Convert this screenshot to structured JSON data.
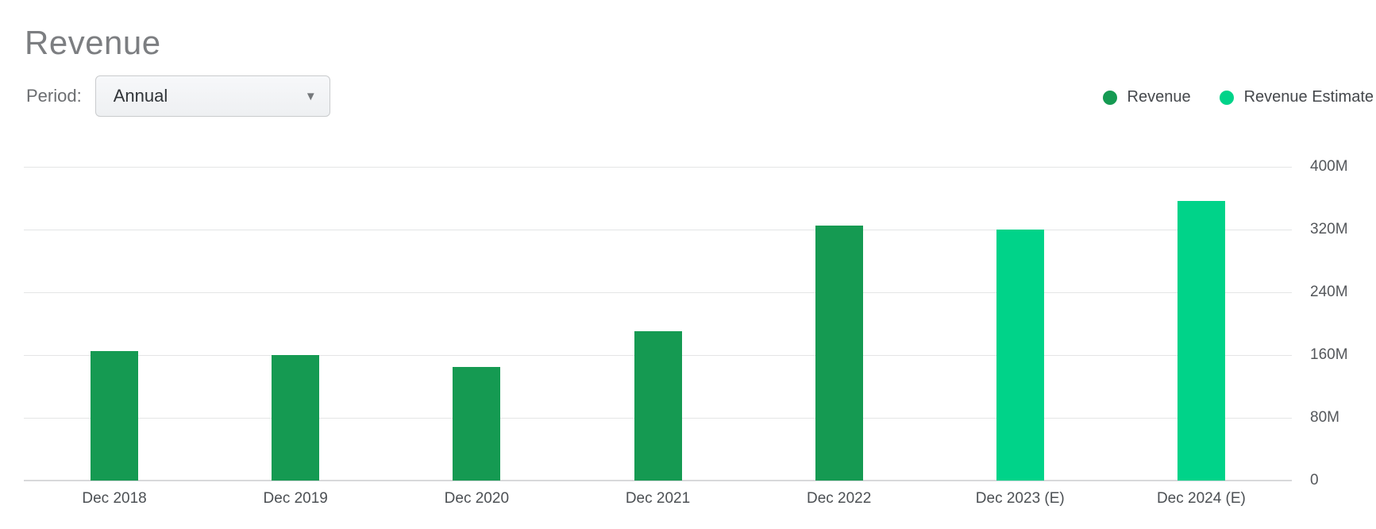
{
  "header": {
    "title": "Revenue"
  },
  "controls": {
    "period_label": "Period:",
    "period_value": "Annual",
    "dropdown_icon": "▼"
  },
  "chart_data": {
    "type": "bar",
    "title": "Revenue",
    "values_unit": "millions (M)",
    "categories": [
      "Dec 2018",
      "Dec 2019",
      "Dec 2020",
      "Dec 2021",
      "Dec 2022",
      "Dec 2023 (E)",
      "Dec 2024 (E)"
    ],
    "series": [
      {
        "name": "Revenue",
        "color": "#159a52",
        "values": [
          165,
          160,
          145,
          190,
          325,
          null,
          null
        ]
      },
      {
        "name": "Revenue Estimate",
        "color": "#00d389",
        "values": [
          null,
          null,
          null,
          null,
          null,
          320,
          356
        ]
      }
    ],
    "ylim": [
      0,
      400
    ],
    "yticks": [
      {
        "label": "400M",
        "value": 400
      },
      {
        "label": "320M",
        "value": 320
      },
      {
        "label": "240M",
        "value": 240
      },
      {
        "label": "160M",
        "value": 160
      },
      {
        "label": "80M",
        "value": 80
      },
      {
        "label": "0",
        "value": 0
      }
    ],
    "grid": "horizontal",
    "legend_position": "top-right"
  },
  "colors": {
    "gridline": "#e4e5e6",
    "axis_baseline": "#d8d9da",
    "title_text": "#7c7e81",
    "axis_text": "#54575b",
    "legend_text": "#45484c"
  }
}
